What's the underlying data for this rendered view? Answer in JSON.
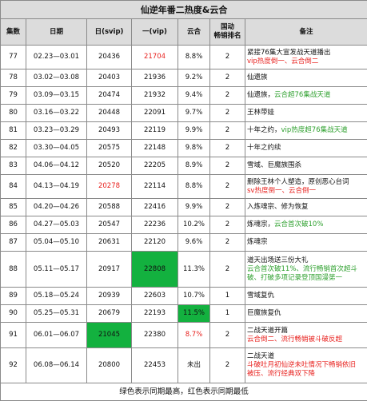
{
  "title": "仙逆年番二热度&云合",
  "headers": [
    "集数",
    "日期",
    "日(svip)",
    "一(vip)",
    "云合",
    "国动\n畅销排名",
    "备注"
  ],
  "rows": [
    {
      "ep": "77",
      "date": "02.23—03.01",
      "svip": "20436",
      "vip": "21704",
      "yunhe": "8.8%",
      "rank": "2",
      "notes": [
        {
          "t": "紧接76集大宣发战天道播出",
          "c": ""
        },
        {
          "t": "vip热度倒一、云合倒二",
          "c": "red"
        }
      ]
    },
    {
      "ep": "78",
      "date": "03.02—03.08",
      "svip": "20403",
      "vip": "21936",
      "yunhe": "9.2%",
      "rank": "2",
      "notes": [
        {
          "t": "仙遗族",
          "c": ""
        }
      ]
    },
    {
      "ep": "79",
      "date": "03.09—03.15",
      "svip": "20474",
      "vip": "21932",
      "yunhe": "9.4%",
      "rank": "2",
      "notes": [
        {
          "t": "仙遗族，云合超76集战天道",
          "c": "mix"
        }
      ]
    },
    {
      "ep": "80",
      "date": "03.16—03.22",
      "svip": "20448",
      "vip": "22091",
      "yunhe": "9.7%",
      "rank": "2",
      "notes": [
        {
          "t": "王林带娃",
          "c": ""
        }
      ]
    },
    {
      "ep": "81",
      "date": "03.23—03.29",
      "svip": "20493",
      "vip": "22119",
      "yunhe": "9.9%",
      "rank": "2",
      "notes": [
        {
          "t": "十年之约，vip热度超76集战天道",
          "c": "mix2"
        }
      ]
    },
    {
      "ep": "82",
      "date": "03.30—04.05",
      "svip": "20575",
      "vip": "22148",
      "yunhe": "9.8%",
      "rank": "2",
      "notes": [
        {
          "t": "十年之约续",
          "c": ""
        }
      ]
    },
    {
      "ep": "83",
      "date": "04.06—04.12",
      "svip": "20520",
      "vip": "22205",
      "yunhe": "8.9%",
      "rank": "2",
      "notes": [
        {
          "t": "雪域、巨魔族围杀",
          "c": ""
        }
      ]
    },
    {
      "ep": "84",
      "date": "04.13—04.19",
      "svip": "20278",
      "vip": "22114",
      "yunhe": "8.8%",
      "rank": "2",
      "notes": [
        {
          "t": "删除王林个人塑造，原创恶心台词",
          "c": ""
        },
        {
          "t": "sv热度倒一、云合倒一",
          "c": "red"
        }
      ]
    },
    {
      "ep": "85",
      "date": "04.20—04.26",
      "svip": "20588",
      "vip": "22416",
      "yunhe": "9.9%",
      "rank": "2",
      "notes": [
        {
          "t": "入炼魂宗、修为恢复",
          "c": ""
        }
      ]
    },
    {
      "ep": "86",
      "date": "04.27—05.03",
      "svip": "20547",
      "vip": "22236",
      "yunhe": "10.2%",
      "rank": "2",
      "notes": [
        {
          "t": "炼魂宗，云合首次破10%",
          "c": "mix3"
        }
      ]
    },
    {
      "ep": "87",
      "date": "05.04—05.10",
      "svip": "20631",
      "vip": "22120",
      "yunhe": "9.6%",
      "rank": "2",
      "notes": [
        {
          "t": "炼魂宗",
          "c": ""
        }
      ]
    },
    {
      "ep": "88",
      "date": "05.11—05.17",
      "svip": "20917",
      "vip": "22808",
      "yunhe": "11.3%",
      "rank": "2",
      "notes": [
        {
          "t": "道天出场送三份大礼",
          "c": ""
        },
        {
          "t": "云合首次破11%、流行畅销首次超斗",
          "c": "green"
        },
        {
          "t": "破、打破多项记录登顶国漫第一",
          "c": "green"
        }
      ]
    },
    {
      "ep": "89",
      "date": "05.18—05.24",
      "svip": "20939",
      "vip": "22603",
      "yunhe": "10.7%",
      "rank": "1",
      "notes": [
        {
          "t": "雪域复仇",
          "c": ""
        }
      ]
    },
    {
      "ep": "90",
      "date": "05.25—05.31",
      "svip": "20679",
      "vip": "22193",
      "yunhe": "11.5%",
      "rank": "1",
      "notes": [
        {
          "t": "巨魔族复仇",
          "c": ""
        }
      ]
    },
    {
      "ep": "91",
      "date": "06.01—06.07",
      "svip": "21045",
      "vip": "22380",
      "yunhe": "8.7%",
      "rank": "2",
      "notes": [
        {
          "t": "二战天道开篇",
          "c": ""
        },
        {
          "t": "云合倒二、流行畅销被斗破反超",
          "c": "red"
        }
      ]
    },
    {
      "ep": "92",
      "date": "06.08—06.14",
      "svip": "20800",
      "vip": "22453",
      "yunhe": "未出",
      "rank": "2",
      "notes": [
        {
          "t": "二战天道",
          "c": ""
        },
        {
          "t": "斗破吐月初仙逆未吐情况下畅销依旧",
          "c": "red"
        },
        {
          "t": "被压、流行经典双下降",
          "c": "red"
        }
      ]
    }
  ],
  "highlights": {
    "vip_red": [
      "77"
    ],
    "svip_red": [
      "84"
    ],
    "yunhe_red": [
      "91"
    ],
    "vip_green": [
      "88"
    ],
    "svip_green": [
      "91"
    ],
    "yunhe_green": [
      "90"
    ]
  },
  "colors": {
    "red": "#e8211e",
    "green_text": "#2ea02e",
    "green_fill": "#13b13f",
    "header_bg": "#dcdcdc"
  },
  "footer": "绿色表示同期最高，红色表示同期最低"
}
